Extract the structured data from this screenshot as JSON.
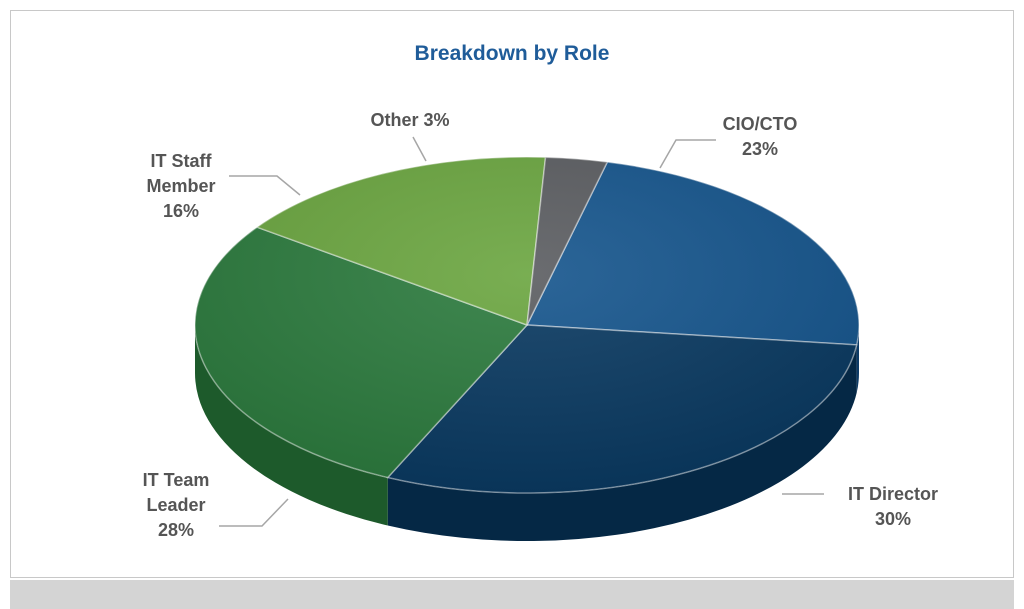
{
  "chart_data": {
    "type": "pie",
    "title": "Breakdown by Role",
    "slices": [
      {
        "label": "CIO/CTO",
        "value": 23,
        "label_lines": [
          "CIO/CTO",
          "23%"
        ],
        "color": "#14548c",
        "side_color": "#0d3b66"
      },
      {
        "label": "IT Director",
        "value": 30,
        "label_lines": [
          "IT Director",
          "30%"
        ],
        "color": "#083860",
        "side_color": "#052845"
      },
      {
        "label": "IT Team Leader",
        "value": 28,
        "label_lines": [
          "IT Team",
          "Leader",
          "28%"
        ],
        "color": "#2b7a3d",
        "side_color": "#1d5a2b"
      },
      {
        "label": "IT Staff Member",
        "value": 16,
        "label_lines": [
          "IT Staff",
          "Member",
          "16%"
        ],
        "color": "#6aa53f",
        "side_color": "#4d7d2b"
      },
      {
        "label": "Other",
        "value": 3,
        "label_lines": [
          "Other 3%"
        ],
        "color": "#5a5c60",
        "side_color": "#3e4044"
      }
    ],
    "legend": "none"
  }
}
